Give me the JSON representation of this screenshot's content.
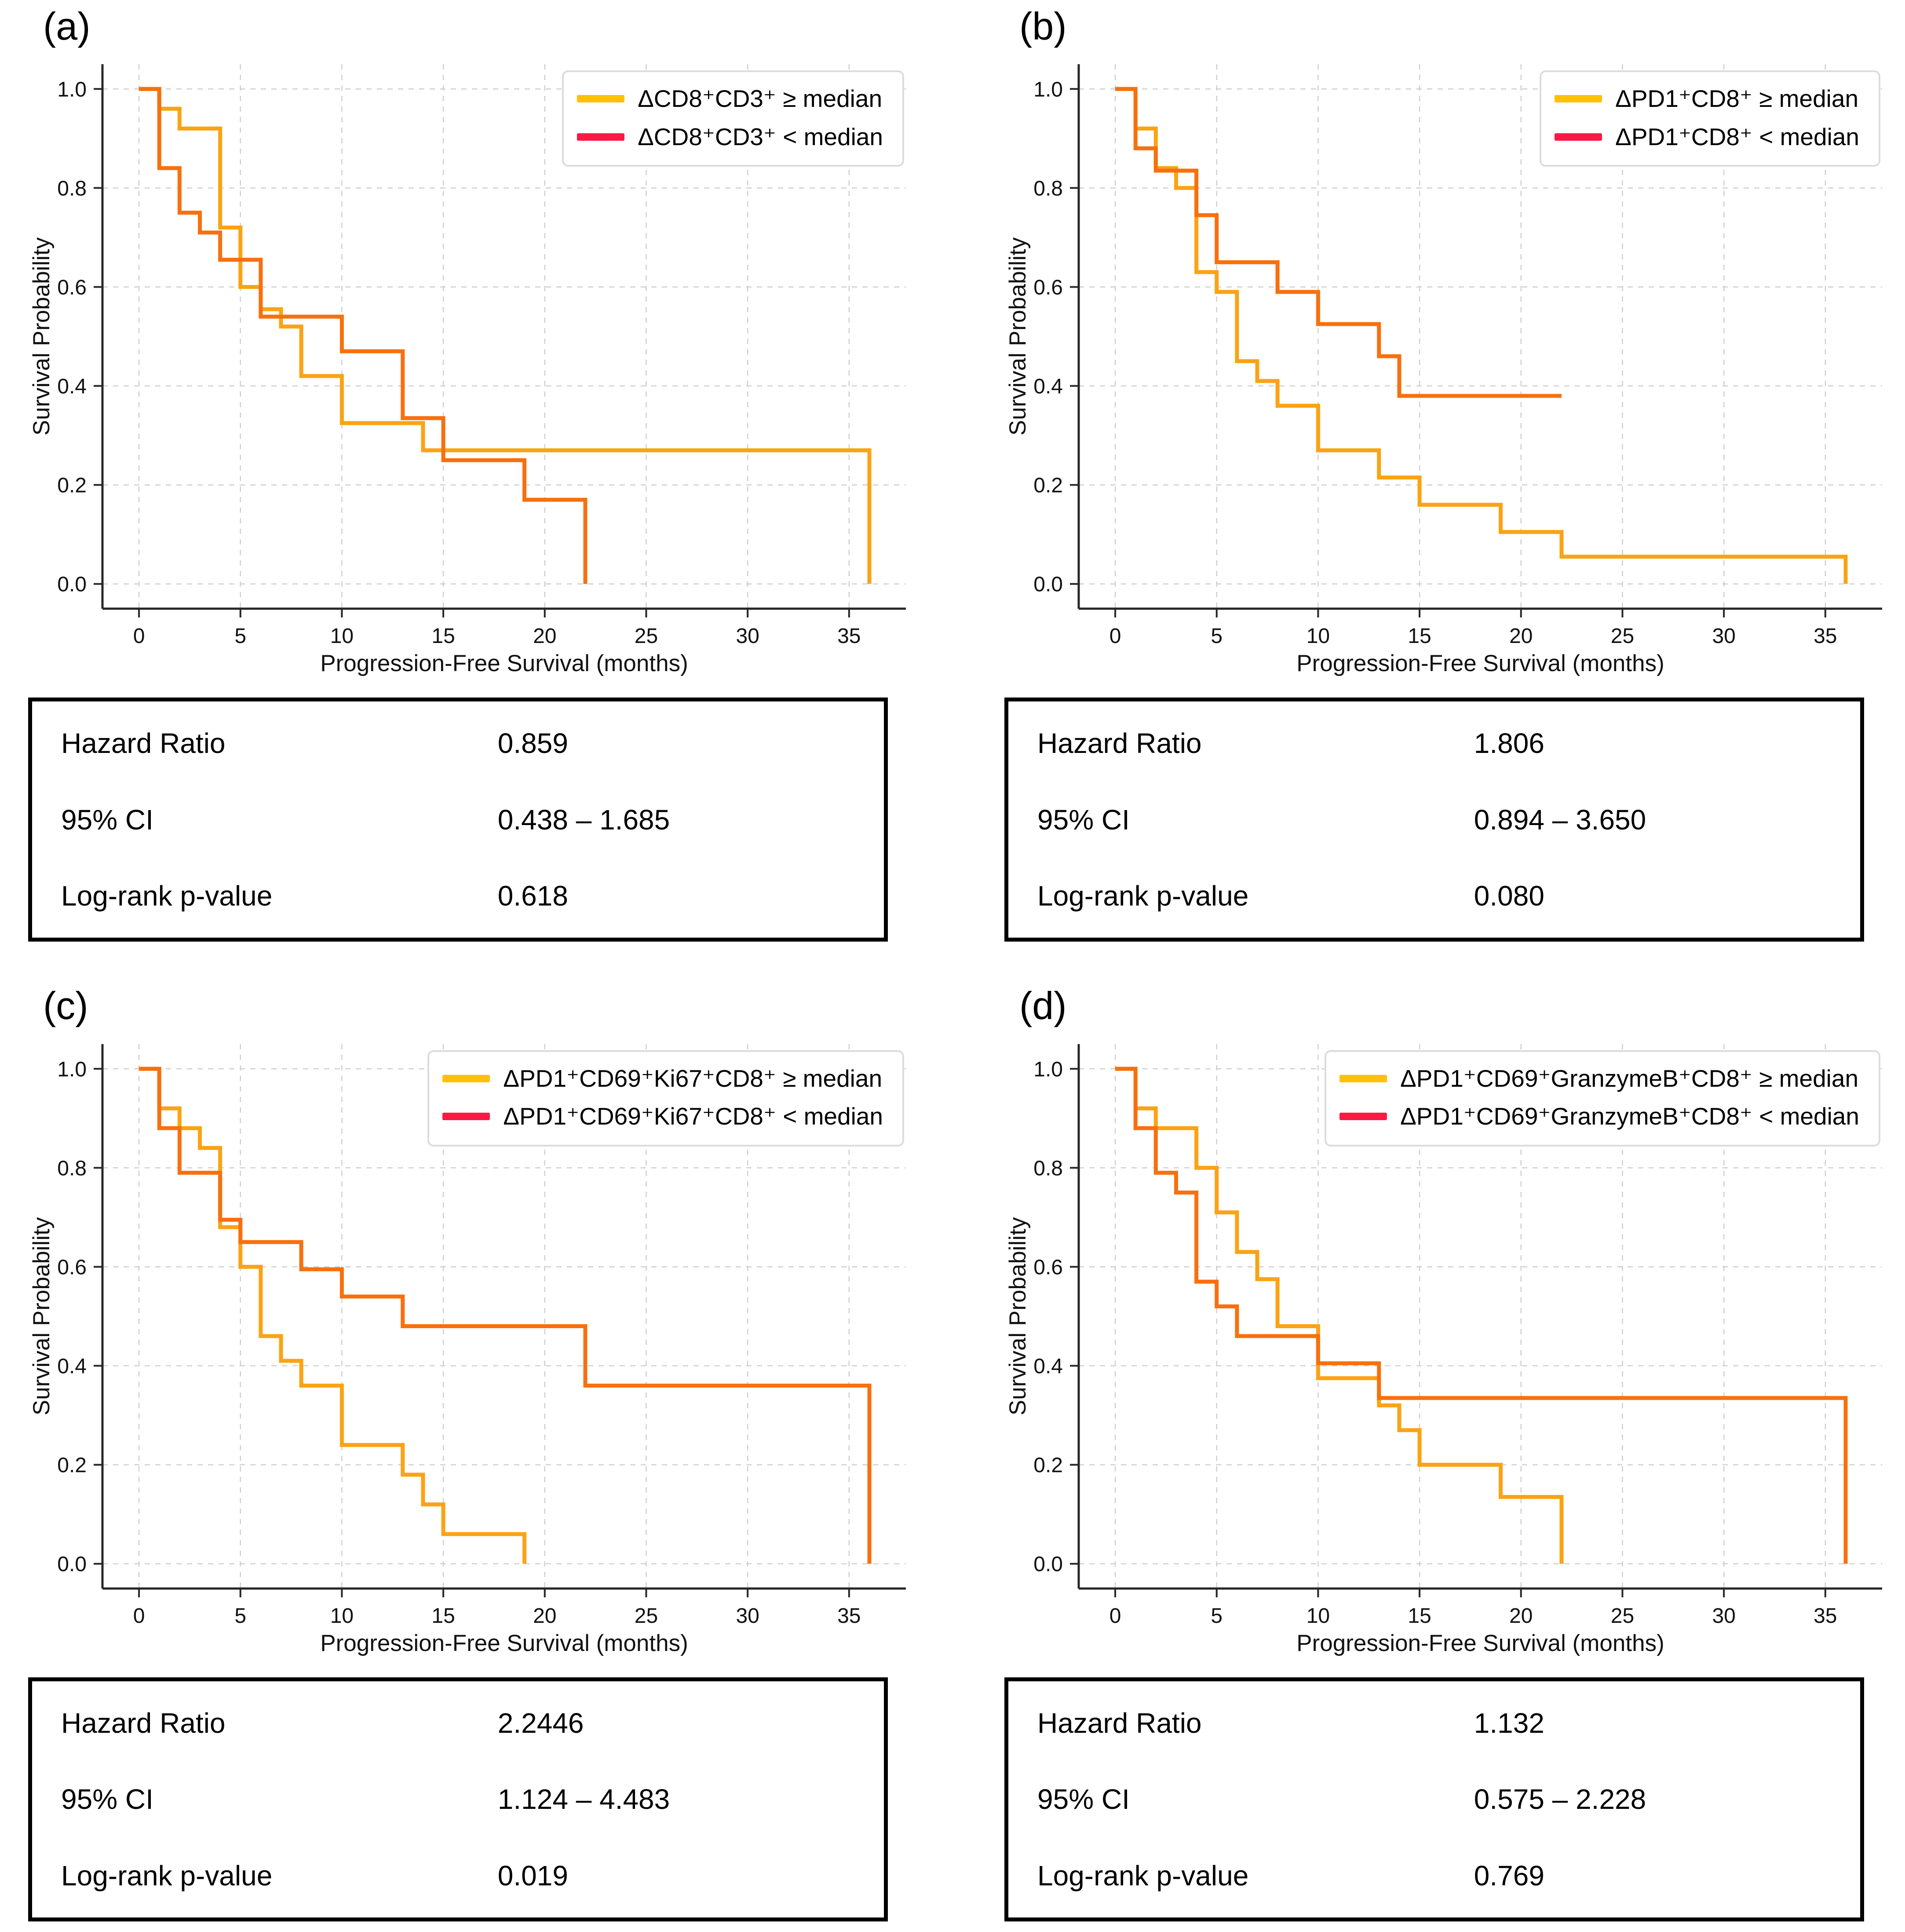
{
  "figure": {
    "colors": {
      "curve_high": "#FBA314",
      "curve_low": "#F8700E",
      "legend_high": "#FFC107",
      "legend_low": "#FB1A43",
      "grid": "#cfcfcf",
      "spine": "#262626",
      "table_border": "#000000"
    },
    "axis": {
      "xlabel": "Progression-Free Survival (months)",
      "ylabel": "Survival Probability",
      "x_ticks": [
        0,
        5,
        10,
        15,
        20,
        25,
        30,
        35
      ],
      "y_ticks": [
        "0.0",
        "0.2",
        "0.4",
        "0.6",
        "0.8",
        "1.0"
      ],
      "xlim": [
        -1.8,
        37.8
      ],
      "ylim": [
        -0.05,
        1.05
      ],
      "grid": "on",
      "legend_position": "upper right"
    }
  },
  "chart_data": [
    {
      "panel_label": "(a)",
      "type": "line",
      "subtype": "kaplan-meier-step",
      "series": [
        {
          "name": "high",
          "label": "ΔCD8⁺CD3⁺ ≥ median",
          "changes": [
            [
              0,
              1.0
            ],
            [
              1,
              0.96
            ],
            [
              2,
              0.92
            ],
            [
              4,
              0.72
            ],
            [
              5,
              0.6
            ],
            [
              6,
              0.555
            ],
            [
              7,
              0.52
            ],
            [
              8,
              0.42
            ],
            [
              10,
              0.325
            ],
            [
              14,
              0.27
            ],
            [
              36,
              0.0
            ]
          ],
          "t_end": 36
        },
        {
          "name": "low",
          "label": "ΔCD8⁺CD3⁺ < median",
          "changes": [
            [
              0,
              1.0
            ],
            [
              1,
              0.84
            ],
            [
              2,
              0.75
            ],
            [
              3,
              0.71
            ],
            [
              4,
              0.655
            ],
            [
              6,
              0.54
            ],
            [
              10,
              0.47
            ],
            [
              13,
              0.335
            ],
            [
              15,
              0.25
            ],
            [
              19,
              0.17
            ],
            [
              22,
              0.0
            ]
          ],
          "t_end": 22
        }
      ],
      "stats": {
        "hr_label": "Hazard Ratio",
        "hr_value": "0.859",
        "ci_label": "95% CI",
        "ci_value": "0.438 – 1.685",
        "p_label": "Log-rank p-value",
        "p_value": "0.618"
      }
    },
    {
      "panel_label": "(b)",
      "type": "line",
      "subtype": "kaplan-meier-step",
      "series": [
        {
          "name": "high",
          "label": "ΔPD1⁺CD8⁺ ≥ median",
          "changes": [
            [
              0,
              1.0
            ],
            [
              1,
              0.92
            ],
            [
              2,
              0.84
            ],
            [
              3,
              0.8
            ],
            [
              4,
              0.63
            ],
            [
              5,
              0.59
            ],
            [
              6,
              0.45
            ],
            [
              7,
              0.41
            ],
            [
              8,
              0.36
            ],
            [
              10,
              0.27
            ],
            [
              13,
              0.215
            ],
            [
              15,
              0.16
            ],
            [
              19,
              0.105
            ],
            [
              22,
              0.055
            ],
            [
              36,
              0.0
            ]
          ],
          "t_end": 36
        },
        {
          "name": "low",
          "label": "ΔPD1⁺CD8⁺ < median",
          "changes": [
            [
              0,
              1.0
            ],
            [
              1,
              0.88
            ],
            [
              2,
              0.835
            ],
            [
              4,
              0.745
            ],
            [
              5,
              0.65
            ],
            [
              8,
              0.59
            ],
            [
              10,
              0.525
            ],
            [
              13,
              0.46
            ],
            [
              14,
              0.38
            ]
          ],
          "t_end": 22
        }
      ],
      "stats": {
        "hr_label": "Hazard Ratio",
        "hr_value": "1.806",
        "ci_label": "95% CI",
        "ci_value": "0.894 – 3.650",
        "p_label": "Log-rank p-value",
        "p_value": "0.080"
      }
    },
    {
      "panel_label": "(c)",
      "type": "line",
      "subtype": "kaplan-meier-step",
      "series": [
        {
          "name": "high",
          "label": "ΔPD1⁺CD69⁺Ki67⁺CD8⁺ ≥ median",
          "changes": [
            [
              0,
              1.0
            ],
            [
              1,
              0.92
            ],
            [
              2,
              0.88
            ],
            [
              3,
              0.84
            ],
            [
              4,
              0.68
            ],
            [
              5,
              0.6
            ],
            [
              6,
              0.46
            ],
            [
              7,
              0.41
            ],
            [
              8,
              0.36
            ],
            [
              10,
              0.24
            ],
            [
              13,
              0.18
            ],
            [
              14,
              0.12
            ],
            [
              15,
              0.06
            ],
            [
              19,
              0.0
            ]
          ],
          "t_end": 19
        },
        {
          "name": "low",
          "label": "ΔPD1⁺CD69⁺Ki67⁺CD8⁺ < median",
          "changes": [
            [
              0,
              1.0
            ],
            [
              1,
              0.88
            ],
            [
              2,
              0.79
            ],
            [
              4,
              0.695
            ],
            [
              5,
              0.65
            ],
            [
              8,
              0.595
            ],
            [
              10,
              0.54
            ],
            [
              13,
              0.48
            ],
            [
              22,
              0.36
            ],
            [
              36,
              0.0
            ]
          ],
          "t_end": 36
        }
      ],
      "stats": {
        "hr_label": "Hazard Ratio",
        "hr_value": "2.2446",
        "ci_label": "95% CI",
        "ci_value": "1.124 – 4.483",
        "p_label": "Log-rank p-value",
        "p_value": "0.019"
      }
    },
    {
      "panel_label": "(d)",
      "type": "line",
      "subtype": "kaplan-meier-step",
      "series": [
        {
          "name": "high",
          "label": "ΔPD1⁺CD69⁺GranzymeB⁺CD8⁺ ≥ median",
          "changes": [
            [
              0,
              1.0
            ],
            [
              1,
              0.92
            ],
            [
              2,
              0.88
            ],
            [
              4,
              0.8
            ],
            [
              5,
              0.71
            ],
            [
              6,
              0.63
            ],
            [
              7,
              0.575
            ],
            [
              8,
              0.48
            ],
            [
              10,
              0.375
            ],
            [
              13,
              0.32
            ],
            [
              14,
              0.27
            ],
            [
              15,
              0.2
            ],
            [
              19,
              0.135
            ],
            [
              22,
              0.0
            ]
          ],
          "t_end": 22
        },
        {
          "name": "low",
          "label": "ΔPD1⁺CD69⁺GranzymeB⁺CD8⁺ < median",
          "changes": [
            [
              0,
              1.0
            ],
            [
              1,
              0.88
            ],
            [
              2,
              0.79
            ],
            [
              3,
              0.75
            ],
            [
              4,
              0.57
            ],
            [
              5,
              0.52
            ],
            [
              6,
              0.46
            ],
            [
              10,
              0.405
            ],
            [
              13,
              0.335
            ],
            [
              36,
              0.0
            ]
          ],
          "t_end": 36
        }
      ],
      "stats": {
        "hr_label": "Hazard Ratio",
        "hr_value": "1.132",
        "ci_label": "95% CI",
        "ci_value": "0.575 – 2.228",
        "p_label": "Log-rank p-value",
        "p_value": "0.769"
      }
    }
  ]
}
